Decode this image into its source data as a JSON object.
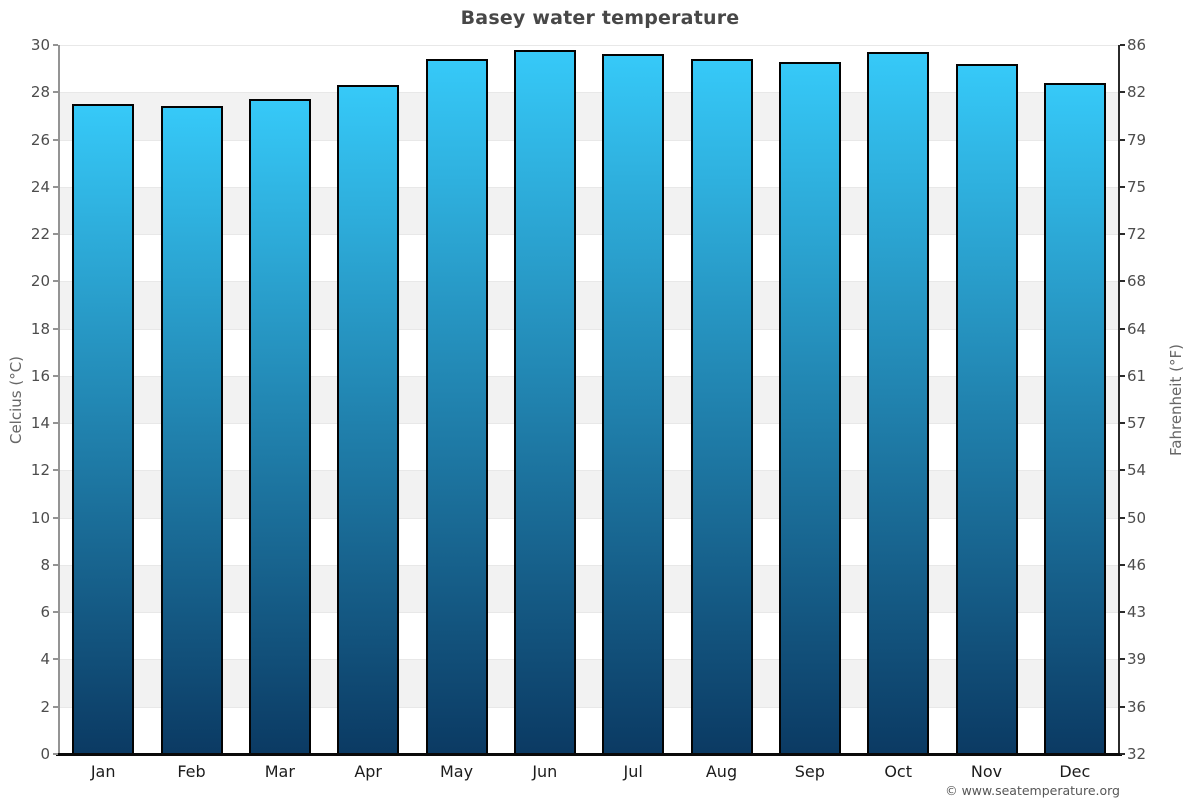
{
  "title": "Basey water temperature",
  "watermark": "© www.seatemperature.org",
  "axes": {
    "left_label": "Celcius (°C)",
    "right_label": "Fahrenheit (°F)"
  },
  "chart_data": {
    "type": "bar",
    "title": "Basey water temperature",
    "categories": [
      "Jan",
      "Feb",
      "Mar",
      "Apr",
      "May",
      "Jun",
      "Jul",
      "Aug",
      "Sep",
      "Oct",
      "Nov",
      "Dec"
    ],
    "values": [
      27.5,
      27.4,
      27.7,
      28.3,
      29.4,
      29.8,
      29.6,
      29.4,
      29.3,
      29.7,
      29.2,
      28.4
    ],
    "unit": "°C",
    "xlabel": "",
    "ylabel_left": "Celcius (°C)",
    "ylabel_right": "Fahrenheit (°F)",
    "ylim": [
      0,
      30
    ],
    "yticks_celsius": [
      30,
      28,
      26,
      24,
      22,
      20,
      18,
      16,
      14,
      12,
      10,
      8,
      6,
      4,
      2,
      0
    ],
    "yticks_fahrenheit": [
      86,
      82,
      79,
      75,
      72,
      68,
      64,
      61,
      57,
      54,
      50,
      46,
      43,
      39,
      36,
      32
    ],
    "legend": "none",
    "grid": "horizontal-bands",
    "colors": {
      "bar_gradient_top": "#36c9f8",
      "bar_gradient_bottom": "#0b3a63",
      "bar_border": "#030303",
      "band_gray": "#f2f2f2",
      "band_white": "#ffffff",
      "title_text": "#474747",
      "tick_text": "#4d4d4d",
      "axis_title_text": "#666666"
    }
  }
}
